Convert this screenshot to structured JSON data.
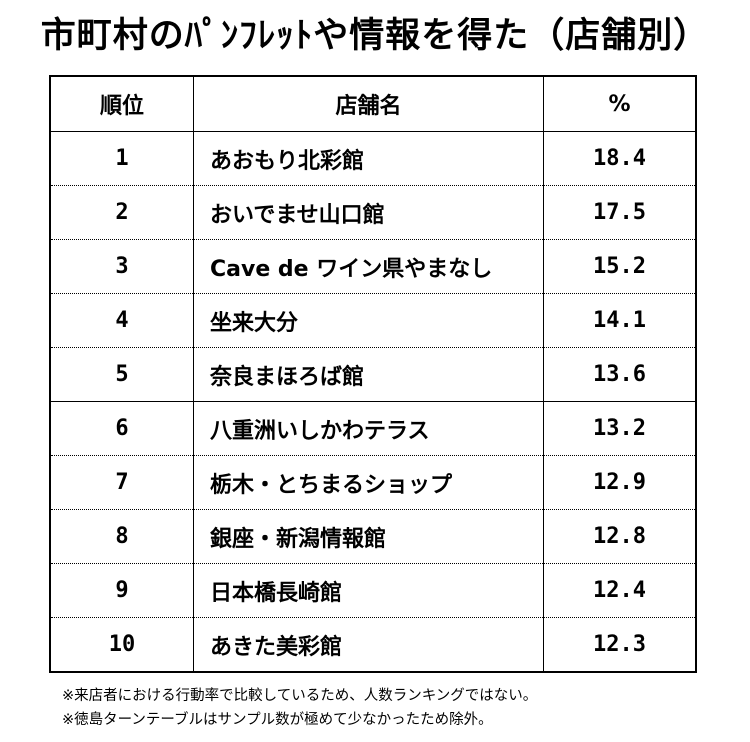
{
  "title": "市町村のﾊﾟﾝﾌﾚｯﾄや情報を得た（店舗別）",
  "table": {
    "headers": {
      "rank": "順位",
      "store": "店舗名",
      "percent": "%"
    },
    "rows": [
      {
        "rank": "1",
        "store": "あおもり北彩館",
        "percent": "18.4"
      },
      {
        "rank": "2",
        "store": "おいでませ山口館",
        "percent": "17.5"
      },
      {
        "rank": "3",
        "store": "Cave de ワイン県やまなし",
        "percent": "15.2"
      },
      {
        "rank": "4",
        "store": "坐来大分",
        "percent": "14.1"
      },
      {
        "rank": "5",
        "store": "奈良まほろば館",
        "percent": "13.6"
      },
      {
        "rank": "6",
        "store": "八重洲いしかわテラス",
        "percent": "13.2"
      },
      {
        "rank": "7",
        "store": "栃木・とちまるショップ",
        "percent": "12.9"
      },
      {
        "rank": "8",
        "store": "銀座・新潟情報館",
        "percent": "12.8"
      },
      {
        "rank": "9",
        "store": "日本橋長崎館",
        "percent": "12.4"
      },
      {
        "rank": "10",
        "store": "あきた美彩館",
        "percent": "12.3"
      }
    ]
  },
  "notes": [
    "※来店者における行動率で比較しているため、人数ランキングではない。",
    "※徳島ターンテーブルはサンプル数が極めて少なかったため除外。"
  ]
}
